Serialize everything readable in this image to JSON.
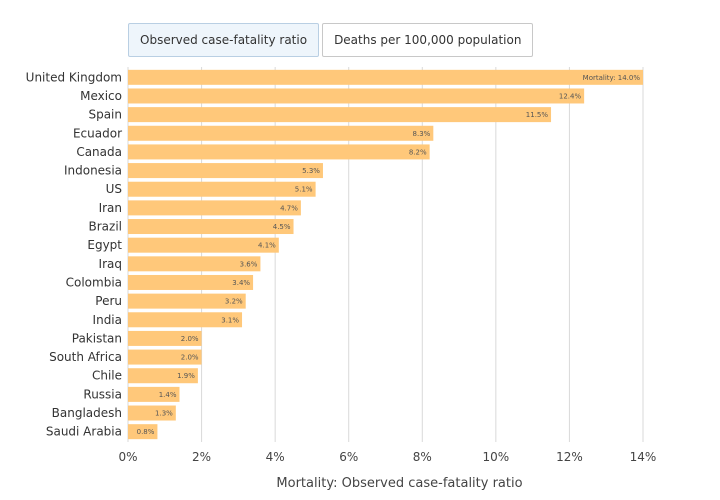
{
  "tabs": [
    {
      "label": "Observed case-fatality ratio",
      "active": true
    },
    {
      "label": "Deaths per 100,000 population",
      "active": false
    }
  ],
  "chart_data": {
    "type": "bar",
    "orientation": "horizontal",
    "categories": [
      "United Kingdom",
      "Mexico",
      "Spain",
      "Ecuador",
      "Canada",
      "Indonesia",
      "US",
      "Iran",
      "Brazil",
      "Egypt",
      "Iraq",
      "Colombia",
      "Peru",
      "India",
      "Pakistan",
      "South Africa",
      "Chile",
      "Russia",
      "Bangladesh",
      "Saudi Arabia"
    ],
    "values": [
      14.0,
      12.4,
      11.5,
      8.3,
      8.2,
      5.3,
      5.1,
      4.7,
      4.5,
      4.1,
      3.6,
      3.4,
      3.2,
      3.1,
      2.0,
      2.0,
      1.9,
      1.4,
      1.3,
      0.8
    ],
    "data_labels": [
      "Mortality: 14.0%",
      "12.4%",
      "11.5%",
      "8.3%",
      "8.2%",
      "5.3%",
      "5.1%",
      "4.7%",
      "4.5%",
      "4.1%",
      "3.6%",
      "3.4%",
      "3.2%",
      "3.1%",
      "2.0%",
      "2.0%",
      "1.9%",
      "1.4%",
      "1.3%",
      "0.8%"
    ],
    "xlabel": "Mortality: Observed case-fatality ratio",
    "xlim": [
      0,
      14
    ],
    "xticks": [
      0,
      2,
      4,
      6,
      8,
      10,
      12,
      14
    ],
    "xtick_labels": [
      "0%",
      "2%",
      "4%",
      "6%",
      "8%",
      "10%",
      "12%",
      "14%"
    ],
    "grid": true,
    "bar_color": "#ffc87a",
    "grid_color": "#d9d9d9"
  }
}
